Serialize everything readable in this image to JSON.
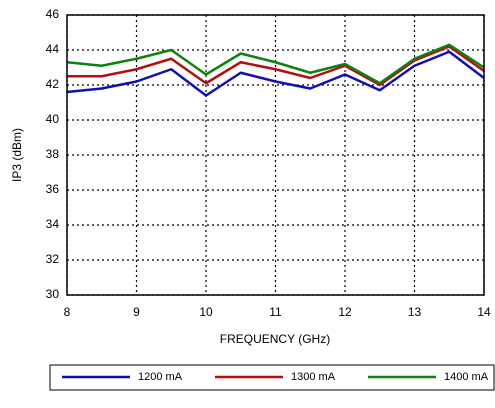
{
  "chart_data": {
    "type": "line",
    "x_label": "FREQUENCY (GHz)",
    "y_label": "IP3 (dBm)",
    "x": [
      8,
      8.5,
      9,
      9.5,
      10,
      10.5,
      11,
      11.5,
      12,
      12.5,
      13,
      13.5,
      14
    ],
    "series": [
      {
        "name": "1200 mA",
        "color": "#1010b0",
        "values": [
          41.6,
          41.8,
          42.2,
          42.9,
          41.4,
          42.7,
          42.2,
          41.8,
          42.6,
          41.7,
          43.1,
          43.9,
          42.4
        ]
      },
      {
        "name": "1300 mA",
        "color": "#b01010",
        "values": [
          42.5,
          42.5,
          42.9,
          43.5,
          42.1,
          43.3,
          42.9,
          42.4,
          43.1,
          42.0,
          43.4,
          44.2,
          42.8
        ]
      },
      {
        "name": "1400 mA",
        "color": "#108010",
        "values": [
          43.3,
          43.1,
          43.5,
          44.0,
          42.6,
          43.8,
          43.3,
          42.7,
          43.2,
          42.1,
          43.5,
          44.3,
          43.0
        ]
      }
    ],
    "xlim": [
      8,
      14
    ],
    "xticks": [
      8,
      9,
      10,
      11,
      12,
      13,
      14
    ],
    "ylim": [
      30,
      46
    ],
    "yticks": [
      30,
      32,
      34,
      36,
      38,
      40,
      42,
      44,
      46
    ],
    "grid": true,
    "legend": "bottom"
  }
}
